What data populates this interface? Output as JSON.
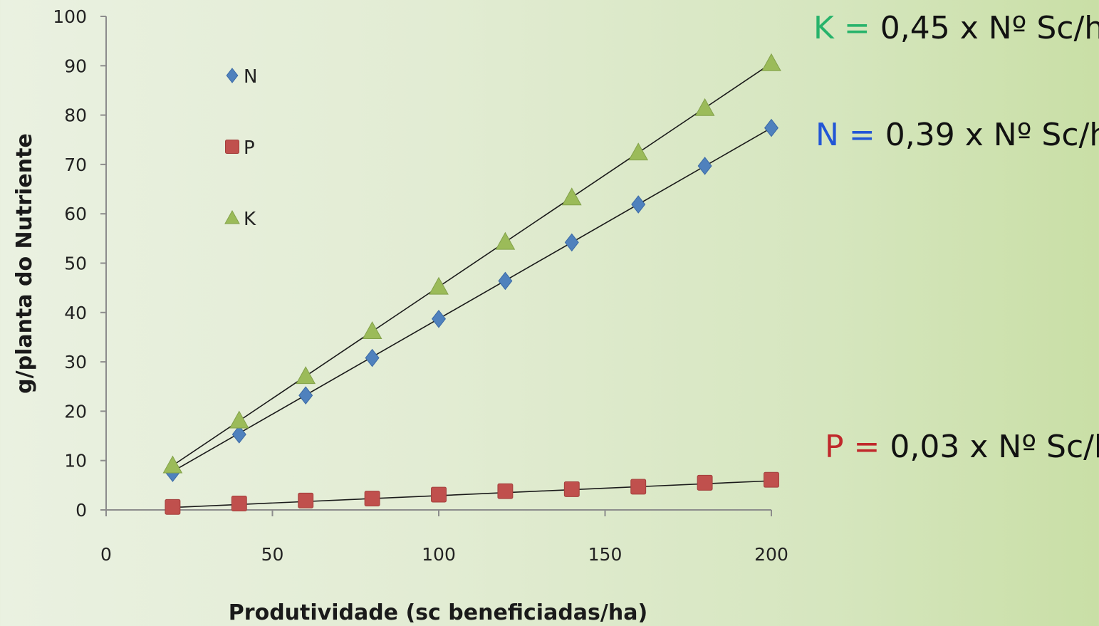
{
  "chart_data": {
    "type": "scatter",
    "xlabel": "Produtividade (sc beneficiadas/ha)",
    "ylabel": "g/planta do Nutriente",
    "xlim": [
      0,
      200
    ],
    "ylim": [
      0,
      100
    ],
    "x_ticks": [
      "0",
      "50",
      "100",
      "150",
      "200"
    ],
    "y_ticks": [
      "0",
      "10",
      "20",
      "30",
      "40",
      "50",
      "60",
      "70",
      "80",
      "90",
      "100"
    ],
    "x_tick_values": [
      0,
      50,
      100,
      150,
      200
    ],
    "y_tick_values": [
      0,
      10,
      20,
      30,
      40,
      50,
      60,
      70,
      80,
      90,
      100
    ],
    "grid": false,
    "legend_position": "top-left",
    "series": [
      {
        "name": "N",
        "marker": "diamond",
        "color": "#4f81bd",
        "x": [
          20,
          40,
          60,
          80,
          100,
          120,
          140,
          160,
          180,
          200
        ],
        "values": [
          7.5,
          15.3,
          23.2,
          30.8,
          38.7,
          46.4,
          54.2,
          61.9,
          69.7,
          77.4
        ],
        "trendline": [
          [
            20,
            7.8
          ],
          [
            200,
            77.4
          ]
        ]
      },
      {
        "name": "P",
        "marker": "square",
        "color": "#c0504d",
        "x": [
          20,
          40,
          60,
          80,
          100,
          120,
          140,
          160,
          180,
          200
        ],
        "values": [
          0.6,
          1.3,
          1.9,
          2.3,
          3.1,
          3.8,
          4.2,
          4.7,
          5.5,
          6.1
        ],
        "trendline": [
          [
            20,
            0.5
          ],
          [
            200,
            5.9
          ]
        ]
      },
      {
        "name": "K",
        "marker": "triangle",
        "color": "#9bbb59",
        "x": [
          20,
          40,
          60,
          80,
          100,
          120,
          140,
          160,
          180,
          200
        ],
        "values": [
          9.0,
          18.1,
          27.1,
          36.2,
          45.2,
          54.3,
          63.3,
          72.4,
          81.4,
          90.5
        ],
        "trendline": [
          [
            20,
            9.0
          ],
          [
            200,
            90.5
          ]
        ]
      }
    ],
    "annotations": [
      {
        "name": "K",
        "letter": "K",
        "eq": "=",
        "value": "0,45",
        "suffix": "x Nº Sc/ha",
        "letter_color": "#27b36b",
        "eq_color": "#27b36b"
      },
      {
        "name": "N",
        "letter": "N",
        "eq": "=",
        "value": "0,39",
        "suffix": "x Nº Sc/ha",
        "letter_color": "#2256d6",
        "eq_color": "#2256d6"
      },
      {
        "name": "P",
        "letter": "P",
        "eq": "=",
        "value": "0,03",
        "suffix": "x Nº Sc/ha",
        "letter_color": "#c0282b",
        "eq_color": "#c0282b"
      }
    ]
  }
}
